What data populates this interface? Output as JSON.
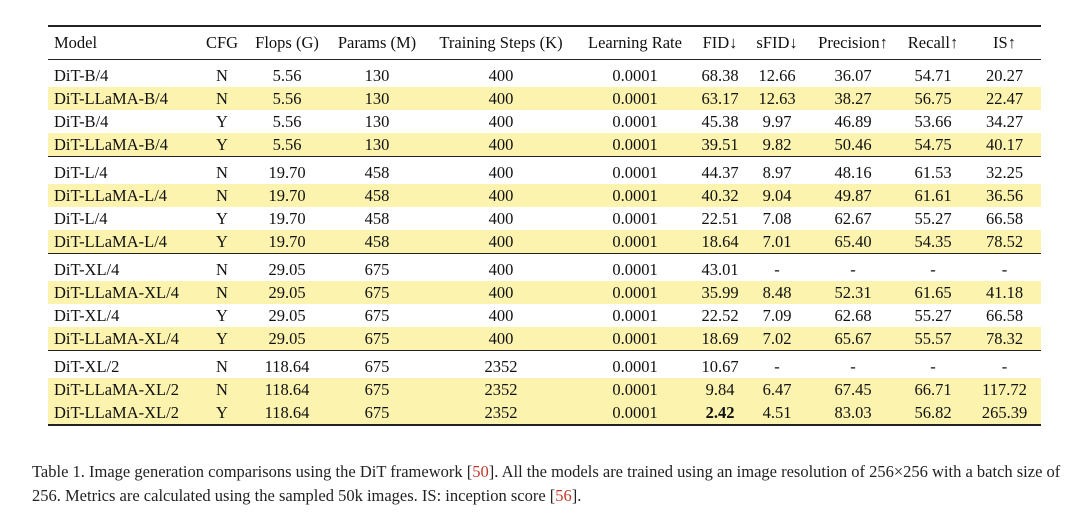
{
  "table": {
    "headers": [
      "Model",
      "CFG",
      "Flops (G)",
      "Params (M)",
      "Training Steps (K)",
      "Learning Rate",
      "FID↓",
      "sFID↓",
      "Precision↑",
      "Recall↑",
      "IS↑"
    ],
    "groups": [
      [
        {
          "cells": [
            "DiT-B/4",
            "N",
            "5.56",
            "130",
            "400",
            "0.0001",
            "68.38",
            "12.66",
            "36.07",
            "54.71",
            "20.27"
          ],
          "highlight": false
        },
        {
          "cells": [
            "DiT-LLaMA-B/4",
            "N",
            "5.56",
            "130",
            "400",
            "0.0001",
            "63.17",
            "12.63",
            "38.27",
            "56.75",
            "22.47"
          ],
          "highlight": true
        },
        {
          "cells": [
            "DiT-B/4",
            "Y",
            "5.56",
            "130",
            "400",
            "0.0001",
            "45.38",
            "9.97",
            "46.89",
            "53.66",
            "34.27"
          ],
          "highlight": false
        },
        {
          "cells": [
            "DiT-LLaMA-B/4",
            "Y",
            "5.56",
            "130",
            "400",
            "0.0001",
            "39.51",
            "9.82",
            "50.46",
            "54.75",
            "40.17"
          ],
          "highlight": true
        }
      ],
      [
        {
          "cells": [
            "DiT-L/4",
            "N",
            "19.70",
            "458",
            "400",
            "0.0001",
            "44.37",
            "8.97",
            "48.16",
            "61.53",
            "32.25"
          ],
          "highlight": false
        },
        {
          "cells": [
            "DiT-LLaMA-L/4",
            "N",
            "19.70",
            "458",
            "400",
            "0.0001",
            "40.32",
            "9.04",
            "49.87",
            "61.61",
            "36.56"
          ],
          "highlight": true
        },
        {
          "cells": [
            "DiT-L/4",
            "Y",
            "19.70",
            "458",
            "400",
            "0.0001",
            "22.51",
            "7.08",
            "62.67",
            "55.27",
            "66.58"
          ],
          "highlight": false
        },
        {
          "cells": [
            "DiT-LLaMA-L/4",
            "Y",
            "19.70",
            "458",
            "400",
            "0.0001",
            "18.64",
            "7.01",
            "65.40",
            "54.35",
            "78.52"
          ],
          "highlight": true
        }
      ],
      [
        {
          "cells": [
            "DiT-XL/4",
            "N",
            "29.05",
            "675",
            "400",
            "0.0001",
            "43.01",
            "-",
            "-",
            "-",
            "-"
          ],
          "highlight": false
        },
        {
          "cells": [
            "DiT-LLaMA-XL/4",
            "N",
            "29.05",
            "675",
            "400",
            "0.0001",
            "35.99",
            "8.48",
            "52.31",
            "61.65",
            "41.18"
          ],
          "highlight": true
        },
        {
          "cells": [
            "DiT-XL/4",
            "Y",
            "29.05",
            "675",
            "400",
            "0.0001",
            "22.52",
            "7.09",
            "62.68",
            "55.27",
            "66.58"
          ],
          "highlight": false
        },
        {
          "cells": [
            "DiT-LLaMA-XL/4",
            "Y",
            "29.05",
            "675",
            "400",
            "0.0001",
            "18.69",
            "7.02",
            "65.67",
            "55.57",
            "78.32"
          ],
          "highlight": true
        }
      ],
      [
        {
          "cells": [
            "DiT-XL/2",
            "N",
            "118.64",
            "675",
            "2352",
            "0.0001",
            "10.67",
            "-",
            "-",
            "-",
            "-"
          ],
          "highlight": false
        },
        {
          "cells": [
            "DiT-LLaMA-XL/2",
            "N",
            "118.64",
            "675",
            "2352",
            "0.0001",
            "9.84",
            "6.47",
            "67.45",
            "66.71",
            "117.72"
          ],
          "highlight": true
        },
        {
          "cells": [
            "DiT-LLaMA-XL/2",
            "Y",
            "118.64",
            "675",
            "2352",
            "0.0001",
            "2.42",
            "4.51",
            "83.03",
            "56.82",
            "265.39"
          ],
          "highlight": true,
          "bold_cols": [
            6
          ]
        }
      ]
    ]
  },
  "caption": {
    "part1": "Table 1. Image generation comparisons using the DiT framework [",
    "cite1": "50",
    "part2": "]. All the models are trained using an image resolution of 256×256 with a batch size of 256. Metrics are calculated using the sampled 50k images. IS: inception score [",
    "cite2": "56",
    "part3": "]."
  }
}
